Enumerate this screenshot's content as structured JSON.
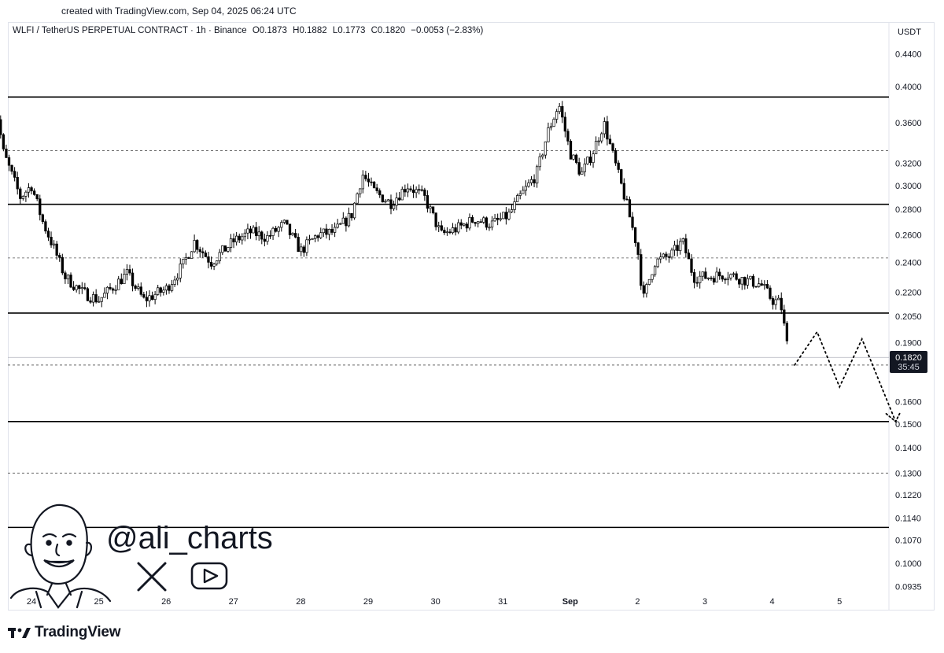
{
  "created_text": "created with TradingView.com, Sep 04, 2025 06:24 UTC",
  "header": {
    "symbol": "WLFI / TetherUS PERPETUAL CONTRACT · 1h · Binance",
    "open": "O0.1873",
    "high": "H0.1882",
    "low": "L0.1773",
    "close": "C0.1820",
    "change": "−0.0053 (−2.83%)"
  },
  "currency": "USDT",
  "handle": "@ali_charts",
  "brand": "TradingView",
  "price_label": {
    "value": "0.1820",
    "countdown": "35:45"
  },
  "colors": {
    "candle_up": "#ffffff",
    "candle_down": "#000000",
    "wick": "#000000",
    "level": "#000000",
    "price_tag": "#131722"
  },
  "chart_data": {
    "type": "candlestick",
    "title": "",
    "x_tick_labels": [
      "24",
      "25",
      "26",
      "27",
      "28",
      "29",
      "30",
      "31",
      "Sep",
      "2",
      "3",
      "4",
      "5"
    ],
    "y_tick_labels": [
      "0.4400",
      "0.4000",
      "0.3600",
      "0.3200",
      "0.3000",
      "0.2800",
      "0.2600",
      "0.2400",
      "0.2200",
      "0.2050",
      "0.1900",
      "0.1600",
      "0.1500",
      "0.1400",
      "0.1300",
      "0.1220",
      "0.1140",
      "0.1070",
      "0.1000",
      "0.0935"
    ],
    "y_scale": "log",
    "ylim": [
      0.09,
      0.46
    ],
    "support_resistance_solid": [
      0.388,
      0.284,
      0.207,
      0.151,
      0.111
    ],
    "dashed_levels": [
      0.332,
      0.243,
      0.178,
      0.13
    ],
    "current_price": 0.182,
    "projection_path": [
      {
        "t": "Sep 04 08:00",
        "price": 0.178
      },
      {
        "t": "Sep 04 16:00",
        "price": 0.196
      },
      {
        "t": "Sep 05 00:00",
        "price": 0.167
      },
      {
        "t": "Sep 05 08:00",
        "price": 0.192
      },
      {
        "t": "Sep 05 20:00",
        "price": 0.151
      }
    ],
    "close_path": [
      [
        "Aug 23 10:00",
        0.405
      ],
      [
        "Aug 23 14:00",
        0.33
      ],
      [
        "Aug 23 20:00",
        0.29
      ],
      [
        "Aug 24 00:00",
        0.3
      ],
      [
        "Aug 24 04:00",
        0.27
      ],
      [
        "Aug 24 08:00",
        0.25
      ],
      [
        "Aug 24 12:00",
        0.23
      ],
      [
        "Aug 24 18:00",
        0.22
      ],
      [
        "Aug 25 00:00",
        0.215
      ],
      [
        "Aug 25 06:00",
        0.225
      ],
      [
        "Aug 25 10:00",
        0.232
      ],
      [
        "Aug 25 16:00",
        0.215
      ],
      [
        "Aug 26 00:00",
        0.222
      ],
      [
        "Aug 26 06:00",
        0.238
      ],
      [
        "Aug 26 10:00",
        0.255
      ],
      [
        "Aug 26 16:00",
        0.24
      ],
      [
        "Aug 27 00:00",
        0.255
      ],
      [
        "Aug 27 06:00",
        0.262
      ],
      [
        "Aug 27 12:00",
        0.258
      ],
      [
        "Aug 27 18:00",
        0.268
      ],
      [
        "Aug 28 00:00",
        0.248
      ],
      [
        "Aug 28 06:00",
        0.26
      ],
      [
        "Aug 28 12:00",
        0.262
      ],
      [
        "Aug 28 18:00",
        0.275
      ],
      [
        "Aug 28 22:00",
        0.31
      ],
      [
        "Aug 29 02:00",
        0.295
      ],
      [
        "Aug 29 08:00",
        0.285
      ],
      [
        "Aug 29 14:00",
        0.3
      ],
      [
        "Aug 29 20:00",
        0.29
      ],
      [
        "Aug 30 02:00",
        0.26
      ],
      [
        "Aug 30 08:00",
        0.265
      ],
      [
        "Aug 30 14:00",
        0.272
      ],
      [
        "Aug 30 20:00",
        0.268
      ],
      [
        "Aug 31 02:00",
        0.275
      ],
      [
        "Aug 31 06:00",
        0.29
      ],
      [
        "Aug 31 12:00",
        0.31
      ],
      [
        "Aug 31 16:00",
        0.35
      ],
      [
        "Aug 31 20:00",
        0.38
      ],
      [
        "Sep 01 00:00",
        0.33
      ],
      [
        "Sep 01 04:00",
        0.31
      ],
      [
        "Sep 01 08:00",
        0.33
      ],
      [
        "Sep 01 12:00",
        0.36
      ],
      [
        "Sep 01 16:00",
        0.32
      ],
      [
        "Sep 01 20:00",
        0.285
      ],
      [
        "Sep 02 00:00",
        0.25
      ],
      [
        "Sep 02 02:00",
        0.215
      ],
      [
        "Sep 02 06:00",
        0.24
      ],
      [
        "Sep 02 12:00",
        0.245
      ],
      [
        "Sep 02 16:00",
        0.255
      ],
      [
        "Sep 02 20:00",
        0.23
      ],
      [
        "Sep 03 02:00",
        0.23
      ],
      [
        "Sep 03 08:00",
        0.232
      ],
      [
        "Sep 03 14:00",
        0.228
      ],
      [
        "Sep 03 20:00",
        0.225
      ],
      [
        "Sep 04 00:00",
        0.215
      ],
      [
        "Sep 04 03:00",
        0.213
      ],
      [
        "Sep 04 06:00",
        0.182
      ]
    ]
  }
}
